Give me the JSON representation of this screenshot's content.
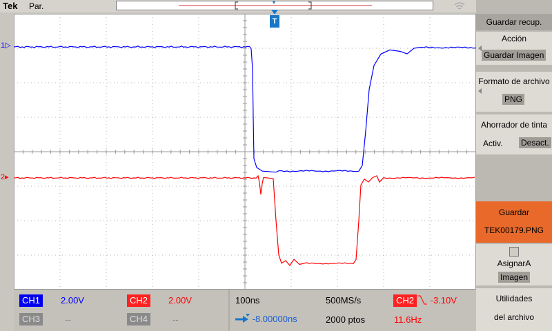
{
  "header": {
    "brand": "Tek",
    "mode": "Par."
  },
  "status_icons": [
    "wifi-icon",
    "usb-icon",
    "document-icon",
    "help-icon"
  ],
  "status": {
    "help_symbol": "?"
  },
  "colors": {
    "ch1": "#0000ff",
    "ch2": "#ff0000",
    "trigger": "#1878c8",
    "save_highlight": "#e8692a"
  },
  "markers": {
    "ch1": "1",
    "ch2": "2",
    "trigger": "T"
  },
  "readouts": {
    "ch1_label": "CH1",
    "ch1_scale": "2.00V",
    "ch2_label": "CH2",
    "ch2_scale": "2.00V",
    "ch3_label": "CH3",
    "ch3_scale": "--",
    "ch4_label": "CH4",
    "ch4_scale": "--",
    "timebase": "100ns",
    "sample_rate": "500MS/s",
    "position": "-8.00000ns",
    "record_length": "2000 ptos",
    "trigger_source": "CH2",
    "trigger_level": "-3.10V",
    "frequency": "11.6Hz"
  },
  "side_menu": {
    "title": "Guardar recup.",
    "accion_label": "Acción",
    "accion_value": "Guardar Imagen",
    "formato_label": "Formato de archivo",
    "formato_value": "PNG",
    "ahorrador_label": "Ahorrador de tinta",
    "ahorrador_on": "Activ.",
    "ahorrador_off": "Desact.",
    "guardar_label": "Guardar",
    "guardar_file": "TEK00179.PNG",
    "asignar_label": "AsignarA",
    "asignar_value": "Imagen",
    "utilidades_line1": "Utilidades",
    "utilidades_line2": "del archivo"
  }
}
